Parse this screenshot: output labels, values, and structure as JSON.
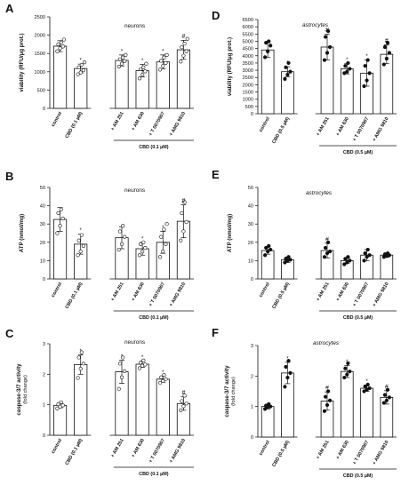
{
  "figure": {
    "panels": [
      "A",
      "B",
      "C",
      "D",
      "E",
      "F"
    ]
  },
  "chart_data": [
    {
      "panel": "A",
      "type": "bar",
      "title": "neurons",
      "title_italic": false,
      "ylabel": "viability (RFU/µg prot.)",
      "ylim": [
        0,
        2500
      ],
      "yticks": [
        0,
        500,
        1000,
        1500,
        2000,
        2500
      ],
      "categories": [
        "control",
        "CBD (0.1 µM)",
        "+ AM 251",
        "+ AM 630",
        "+ T 0070907",
        "+ AMG 9810"
      ],
      "values": [
        1700,
        1090,
        1310,
        1030,
        1270,
        1600
      ],
      "errors": [
        150,
        120,
        150,
        170,
        190,
        260
      ],
      "points": [
        [
          1560,
          1640,
          1690,
          1750,
          1800,
          1880
        ],
        [
          930,
          980,
          1040,
          1120,
          1190,
          1260
        ],
        [
          1140,
          1220,
          1290,
          1340,
          1390,
          1460
        ],
        [
          820,
          920,
          1010,
          1070,
          1120,
          1220
        ],
        [
          1060,
          1160,
          1240,
          1300,
          1390,
          1460
        ],
        [
          1280,
          1440,
          1560,
          1670,
          1770,
          1900
        ]
      ],
      "point_style": "open",
      "significance": [
        "",
        "*",
        "*",
        "*",
        "*",
        "#"
      ],
      "bracket_label": "CBD (0.1 µM)",
      "group_label": "CBD (0.1 µM)"
    },
    {
      "panel": "B",
      "type": "bar",
      "title": "neurons",
      "title_italic": false,
      "ylabel": "ATP (nmol/mg)",
      "ylim": [
        0,
        50
      ],
      "yticks": [
        0,
        10,
        20,
        30,
        40,
        50
      ],
      "categories": [
        "control",
        "CBD (0.1 µM)",
        "+ AM 251",
        "+ AM 630",
        "+ T 0070907",
        "+ AMG 9810"
      ],
      "values": [
        32.5,
        19,
        22.5,
        16.5,
        20,
        31.5
      ],
      "errors": [
        6.5,
        5.5,
        6,
        3.5,
        6,
        9
      ],
      "points": [
        [
          25,
          29,
          33,
          36,
          38
        ],
        [
          13,
          15,
          18,
          21,
          24
        ],
        [
          16,
          19,
          23,
          26,
          29
        ],
        [
          13,
          15,
          17,
          19,
          20
        ],
        [
          12,
          15,
          19,
          23,
          27,
          30
        ],
        [
          21,
          26,
          31,
          36,
          42
        ]
      ],
      "point_style": "open",
      "significance": [
        "",
        "*",
        "",
        "*",
        "*",
        "#"
      ],
      "bracket_label": "CBD (0.1 µM)",
      "group_label": "CBD (0.1 µM)"
    },
    {
      "panel": "C",
      "type": "bar",
      "title": "neurons",
      "title_italic": false,
      "ylabel": "caspase-3/7 activity",
      "ylabel2": "(fold change)",
      "ylim": [
        0,
        3
      ],
      "yticks": [
        0,
        1,
        2,
        3
      ],
      "categories": [
        "control",
        "CBD (0.1 µM)",
        "+ AM 251",
        "+ AM 630",
        "+ T 0070907",
        "+ AMG 9810"
      ],
      "values": [
        0.98,
        2.32,
        2.08,
        2.33,
        1.84,
        1.04
      ],
      "errors": [
        0.08,
        0.32,
        0.38,
        0.1,
        0.1,
        0.22
      ],
      "points": [
        [
          0.88,
          0.94,
          0.98,
          1.02,
          1.08
        ],
        [
          1.88,
          2.18,
          2.35,
          2.55,
          2.72
        ],
        [
          1.52,
          1.9,
          2.1,
          2.35,
          2.55
        ],
        [
          2.2,
          2.28,
          2.32,
          2.38,
          2.45
        ],
        [
          1.72,
          1.78,
          1.84,
          1.9,
          1.98
        ],
        [
          0.82,
          0.95,
          1.04,
          1.12,
          1.3
        ]
      ],
      "point_style": "open",
      "significance": [
        "",
        "*",
        "*",
        "*",
        "*",
        "#"
      ],
      "bracket_label": "CBD (0.1 µM)",
      "group_label": "CBD (0.1 µM)"
    },
    {
      "panel": "D",
      "type": "bar",
      "title": "astrocytes",
      "title_italic": true,
      "ylabel": "viability (RFU/µg prot.)",
      "ylim": [
        0,
        6500
      ],
      "yticks": [
        0,
        500,
        1000,
        1500,
        2000,
        2500,
        3000,
        3500,
        4000,
        4500,
        5000,
        5500,
        6000,
        6500
      ],
      "categories": [
        "control",
        "CBD (0.5 µM)",
        "+ AM 251",
        "+ AM 630",
        "+ T 0070907",
        "+ AMG 9810"
      ],
      "values": [
        4400,
        2900,
        4600,
        3100,
        2800,
        4100
      ],
      "errors": [
        500,
        350,
        900,
        350,
        900,
        650
      ],
      "points": [
        [
          3900,
          4300,
          4700,
          4900,
          5000
        ],
        [
          2400,
          2700,
          2900,
          3200,
          3500
        ],
        [
          3700,
          4200,
          4600,
          5300,
          5700
        ],
        [
          2800,
          2900,
          3100,
          3300,
          3500
        ],
        [
          1900,
          2300,
          2800,
          3300,
          3700
        ],
        [
          3400,
          3800,
          4200,
          4600,
          4900
        ]
      ],
      "point_style": "filled",
      "significance": [
        "",
        "*",
        "#",
        "*",
        "*",
        "#"
      ],
      "bracket_label": "CBD (0.5 µM)",
      "group_label": "CBD (0.5 µM)"
    },
    {
      "panel": "E",
      "type": "bar",
      "title": "astrocytes",
      "title_italic": true,
      "ylabel": "ATP (nmol/mg)",
      "ylim": [
        0,
        50
      ],
      "yticks": [
        0,
        10,
        20,
        30,
        40,
        50
      ],
      "categories": [
        "control",
        "CBD (0.5 µM)",
        "+ AM 251",
        "+ AM 630",
        "+ T 0070907",
        "+ AMG 9810"
      ],
      "values": [
        15.5,
        10.5,
        15.5,
        10,
        13,
        13
      ],
      "errors": [
        2,
        1.5,
        4,
        1.5,
        3,
        1.2
      ],
      "points": [
        [
          13,
          15,
          16,
          17,
          18
        ],
        [
          9,
          10,
          10.5,
          11,
          12
        ],
        [
          12,
          14,
          15,
          17,
          20
        ],
        [
          8,
          9,
          10,
          11,
          12
        ],
        [
          10,
          12,
          13,
          14,
          16
        ],
        [
          12,
          12.5,
          13,
          13.5,
          14
        ]
      ],
      "point_style": "filled",
      "significance": [
        "",
        "",
        "#",
        "",
        "",
        ""
      ],
      "bracket_label": "CBD (0.5 µM)",
      "group_label": "CBD (0.5 µM)"
    },
    {
      "panel": "F",
      "type": "bar",
      "title": "astrocytes",
      "title_italic": true,
      "ylabel": "caspase-3/7 activity",
      "ylabel2": "(fold change)",
      "ylim": [
        0,
        3
      ],
      "yticks": [
        0,
        1,
        2,
        3
      ],
      "categories": [
        "control",
        "CBD (0.5 µM)",
        "+ AM 251",
        "+ AM 630",
        "+ T 0070907",
        "+ AMG 9810"
      ],
      "values": [
        1.0,
        2.1,
        1.18,
        2.15,
        1.6,
        1.3
      ],
      "errors": [
        0.08,
        0.35,
        0.3,
        0.2,
        0.1,
        0.22
      ],
      "points": [
        [
          0.92,
          0.98,
          1.0,
          1.03,
          1.08
        ],
        [
          1.65,
          1.95,
          2.1,
          2.3,
          2.5
        ],
        [
          0.85,
          1.05,
          1.2,
          1.32,
          1.5
        ],
        [
          1.95,
          2.05,
          2.15,
          2.25,
          2.42
        ],
        [
          1.5,
          1.55,
          1.6,
          1.66,
          1.72
        ],
        [
          1.12,
          1.2,
          1.3,
          1.38,
          1.55
        ]
      ],
      "point_style": "filled",
      "significance": [
        "",
        "*",
        "#",
        "*",
        "*",
        "#"
      ],
      "bracket_label": "CBD (0.5 µM)",
      "group_label": "CBD (0.5 µM)"
    }
  ]
}
